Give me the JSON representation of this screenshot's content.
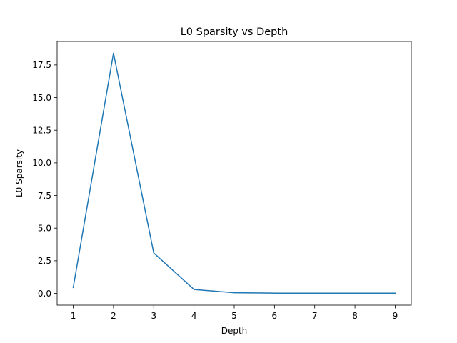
{
  "chart_data": {
    "type": "line",
    "title": "L0 Sparsity vs Depth",
    "xlabel": "Depth",
    "ylabel": "L0 Sparsity",
    "x": [
      1,
      2,
      3,
      4,
      5,
      6,
      7,
      8,
      9
    ],
    "series": [
      {
        "values": [
          0.45,
          18.4,
          3.1,
          0.3,
          0.05,
          0.02,
          0.02,
          0.02,
          0.02
        ],
        "color": "#1f77b4"
      }
    ],
    "xlim": [
      0.6,
      9.4
    ],
    "ylim": [
      -0.9,
      19.3
    ],
    "xticks": [
      1,
      2,
      3,
      4,
      5,
      6,
      7,
      8,
      9
    ],
    "xtick_labels": [
      "1",
      "2",
      "3",
      "4",
      "5",
      "6",
      "7",
      "8",
      "9"
    ],
    "yticks": [
      0,
      2.5,
      5,
      7.5,
      10,
      12.5,
      15,
      17.5
    ],
    "ytick_labels": [
      "0.0",
      "2.5",
      "5.0",
      "7.5",
      "10.0",
      "12.5",
      "15.0",
      "17.5"
    ],
    "grid": false,
    "legend": "none"
  }
}
